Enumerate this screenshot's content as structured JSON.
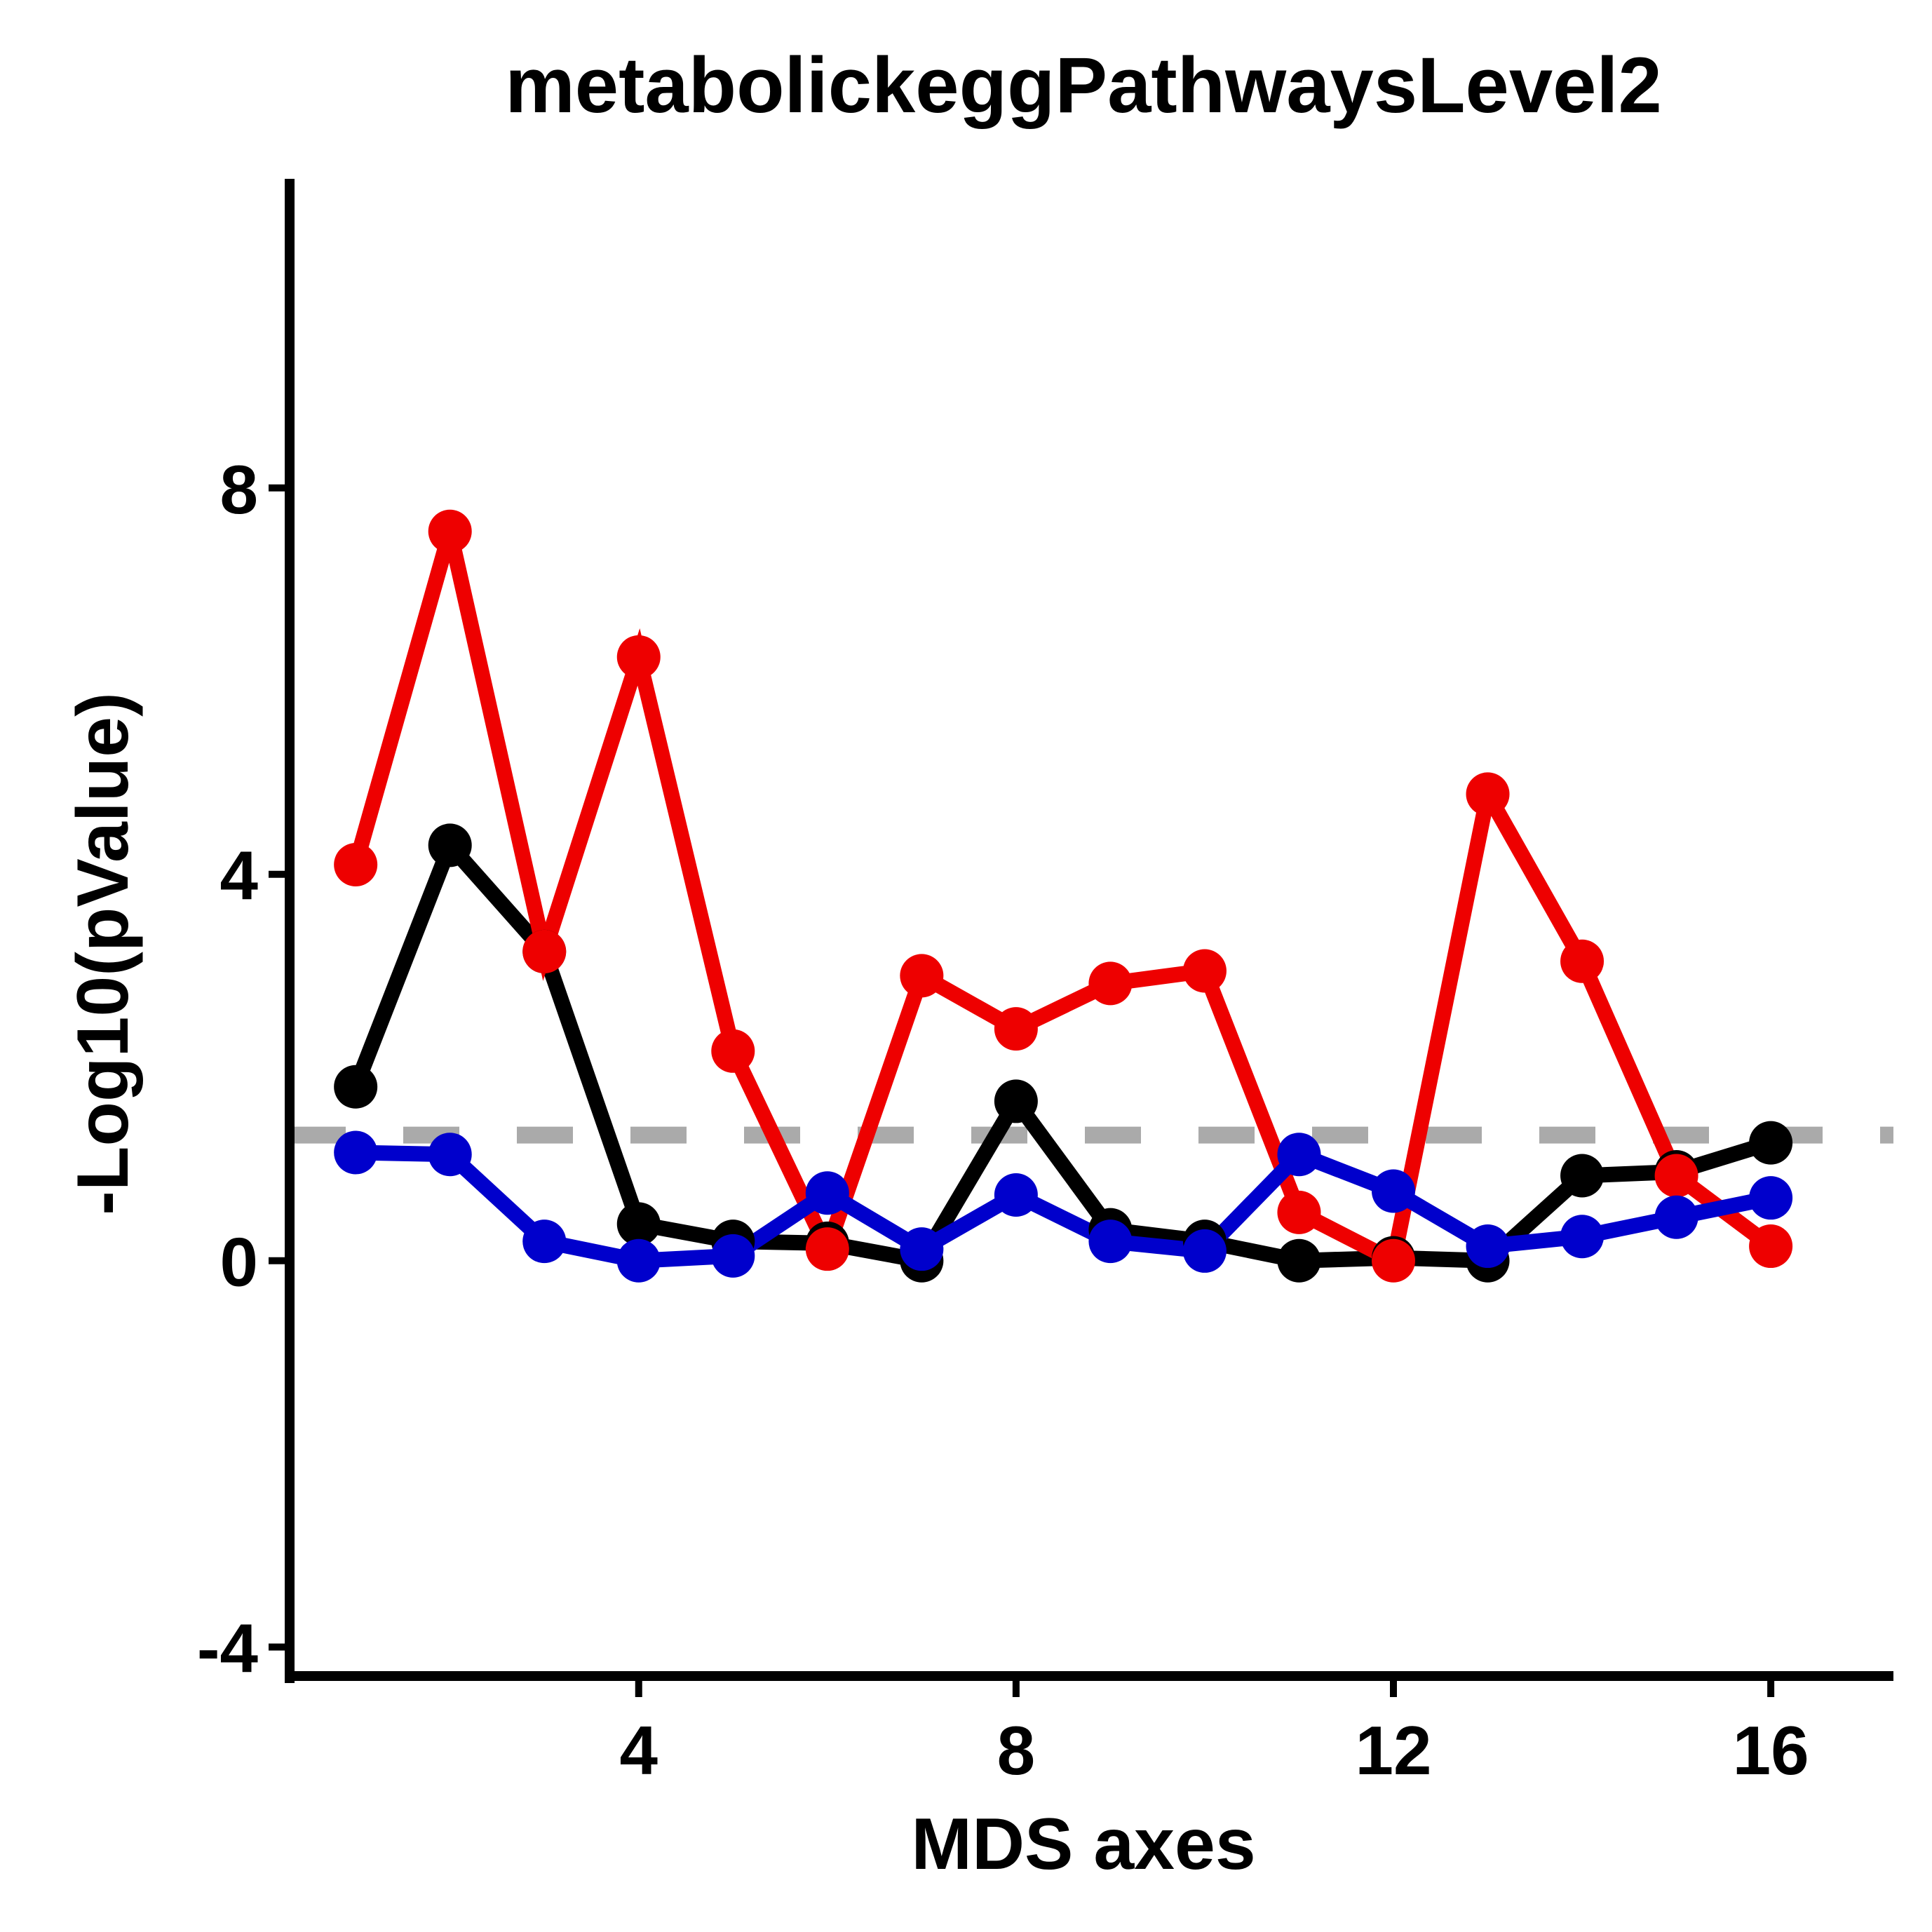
{
  "chart_data": {
    "type": "line",
    "title": "metabolickeggPathwaysLevel2",
    "xlabel": "MDS axes",
    "ylabel": "-Log10(pValue)",
    "xlim": [
      0.3,
      17.3
    ],
    "ylim": [
      -4.3,
      11.2
    ],
    "xticks": [
      4,
      8,
      12,
      16
    ],
    "yticks": [
      -4,
      0,
      4,
      8
    ],
    "threshold": 1.3,
    "threshold_color": "#aaaaaa",
    "legend": "none",
    "grid": false,
    "x": [
      1,
      2,
      3,
      4,
      5,
      6,
      7,
      8,
      9,
      10,
      11,
      12,
      13,
      14,
      15,
      16
    ],
    "series": [
      {
        "color": "#000000",
        "values": [
          1.8,
          4.3,
          3.2,
          0.38,
          0.2,
          0.18,
          0.0,
          1.65,
          0.32,
          0.2,
          0.0,
          0.03,
          0.0,
          0.88,
          0.92,
          1.22
        ]
      },
      {
        "color": "#ee0000",
        "values": [
          4.1,
          7.55,
          3.2,
          6.25,
          2.17,
          0.12,
          2.95,
          2.4,
          2.87,
          3.0,
          0.5,
          0.0,
          4.83,
          3.1,
          0.88,
          0.15
        ]
      },
      {
        "color": "#0000cc",
        "values": [
          1.12,
          1.1,
          0.2,
          0.0,
          0.05,
          0.7,
          0.12,
          0.68,
          0.2,
          0.1,
          1.1,
          0.72,
          0.15,
          0.25,
          0.45,
          0.65
        ]
      }
    ]
  }
}
